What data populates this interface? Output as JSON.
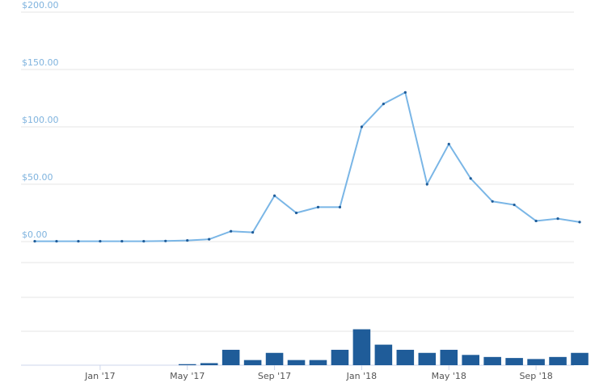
{
  "chart_data": [
    {
      "type": "line",
      "color": "#7ab6e6",
      "marker_color": "#1f5c99",
      "x": [
        "2016-10",
        "2016-11",
        "2016-12",
        "2017-01",
        "2017-02",
        "2017-03",
        "2017-04",
        "2017-05",
        "2017-06",
        "2017-07",
        "2017-08",
        "2017-09",
        "2017-10",
        "2017-11",
        "2017-12",
        "2018-01",
        "2018-02",
        "2018-03",
        "2018-04",
        "2018-05",
        "2018-06",
        "2018-07",
        "2018-08",
        "2018-09",
        "2018-10",
        "2018-11"
      ],
      "values": [
        0.3,
        0.3,
        0.3,
        0.3,
        0.3,
        0.3,
        0.5,
        1,
        2,
        9,
        8,
        40,
        25,
        30,
        30,
        100,
        120,
        130,
        50,
        85,
        55,
        35,
        32,
        18,
        20,
        17
      ],
      "xlim": [
        "2016-10",
        "2018-11"
      ],
      "xticks": [
        {
          "value": "2017-01",
          "label": "Jan '17"
        },
        {
          "value": "2017-05",
          "label": "May '17"
        },
        {
          "value": "2017-09",
          "label": "Sep '17"
        },
        {
          "value": "2018-01",
          "label": "Jan '18"
        },
        {
          "value": "2018-05",
          "label": "May '18"
        },
        {
          "value": "2018-09",
          "label": "Sep '18"
        }
      ],
      "ylim": [
        0,
        200
      ],
      "yticks": [
        {
          "value": 0,
          "label": "$0.00"
        },
        {
          "value": 50,
          "label": "$50.00"
        },
        {
          "value": 100,
          "label": "$100.00"
        },
        {
          "value": 150,
          "label": "$150.00"
        },
        {
          "value": 200,
          "label": "$200.00"
        }
      ],
      "grid": true
    },
    {
      "type": "bar",
      "color": "#1f5c99",
      "x": [
        "2016-10",
        "2016-11",
        "2016-12",
        "2017-01",
        "2017-02",
        "2017-03",
        "2017-04",
        "2017-05",
        "2017-06",
        "2017-07",
        "2017-08",
        "2017-09",
        "2017-10",
        "2017-11",
        "2017-12",
        "2018-01",
        "2018-02",
        "2018-03",
        "2018-04",
        "2018-05",
        "2018-06",
        "2018-07",
        "2018-08",
        "2018-09",
        "2018-10",
        "2018-11"
      ],
      "values": [
        0,
        0,
        0,
        0,
        0,
        0,
        0,
        1,
        2,
        15,
        5,
        12,
        5,
        5,
        15,
        35,
        20,
        15,
        12,
        15,
        10,
        8,
        7,
        6,
        8,
        12
      ],
      "xlim": [
        "2016-10",
        "2018-11"
      ],
      "ylim": [
        0,
        100
      ]
    }
  ]
}
